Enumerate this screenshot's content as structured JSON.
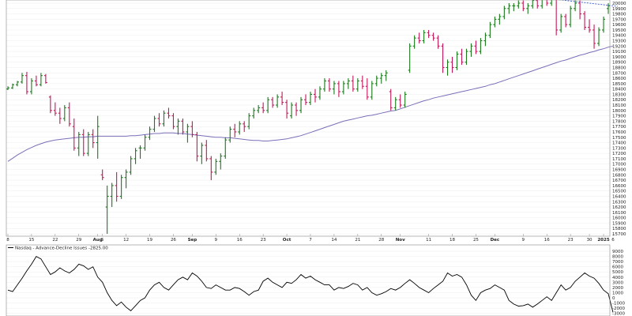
{
  "chart_data": [
    {
      "type": "ohlc",
      "title": "",
      "header_text": "",
      "ylim": [
        15700,
        20000
      ],
      "y_ticks": [
        20000,
        19900,
        19800,
        19700,
        19600,
        19500,
        19400,
        19300,
        19200,
        19100,
        19000,
        18900,
        18800,
        18700,
        18600,
        18500,
        18400,
        18300,
        18200,
        18100,
        18000,
        17900,
        17800,
        17700,
        17600,
        17500,
        17400,
        17300,
        17200,
        17100,
        17000,
        16900,
        16800,
        16700,
        16600,
        16500,
        16400,
        16300,
        16200,
        16100,
        16000,
        15900,
        15800,
        15700
      ],
      "x_ticks": [
        {
          "label": "8",
          "i": 0
        },
        {
          "label": "15",
          "i": 5
        },
        {
          "label": "22",
          "i": 10
        },
        {
          "label": "29",
          "i": 15
        },
        {
          "label": "Aug",
          "i": 19,
          "bold": true
        },
        {
          "label": "5",
          "i": 20
        },
        {
          "label": "12",
          "i": 25
        },
        {
          "label": "19",
          "i": 30
        },
        {
          "label": "26",
          "i": 35
        },
        {
          "label": "Sep",
          "i": 39,
          "bold": true
        },
        {
          "label": "9",
          "i": 44
        },
        {
          "label": "16",
          "i": 49
        },
        {
          "label": "23",
          "i": 54
        },
        {
          "label": "Oct",
          "i": 59,
          "bold": true
        },
        {
          "label": "7",
          "i": 64
        },
        {
          "label": "14",
          "i": 69
        },
        {
          "label": "21",
          "i": 74
        },
        {
          "label": "28",
          "i": 79
        },
        {
          "label": "Nov",
          "i": 83,
          "bold": true
        },
        {
          "label": "11",
          "i": 89
        },
        {
          "label": "18",
          "i": 94
        },
        {
          "label": "25",
          "i": 99
        },
        {
          "label": "Dec",
          "i": 103,
          "bold": true
        },
        {
          "label": "9",
          "i": 109
        },
        {
          "label": "16",
          "i": 114
        },
        {
          "label": "23",
          "i": 119
        },
        {
          "label": "30",
          "i": 123
        },
        {
          "label": "2025",
          "i": 126,
          "bold": true
        },
        {
          "label": "6",
          "i": 128
        }
      ],
      "bars": [
        [
          18400,
          18450,
          18380,
          18420
        ],
        [
          18420,
          18500,
          18400,
          18480
        ],
        [
          18480,
          18550,
          18450,
          18530
        ],
        [
          18530,
          18700,
          18500,
          18650
        ],
        [
          18650,
          18720,
          18300,
          18350
        ],
        [
          18350,
          18600,
          18300,
          18550
        ],
        [
          18550,
          18650,
          18450,
          18480
        ],
        [
          18480,
          18700,
          18450,
          18650
        ],
        [
          18650,
          18680,
          18500,
          18520
        ],
        [
          18250,
          18280,
          17950,
          18000
        ],
        [
          18000,
          18150,
          17900,
          17950
        ],
        [
          17950,
          18050,
          17750,
          17850
        ],
        [
          17850,
          18100,
          17800,
          18050
        ],
        [
          18050,
          18150,
          17700,
          17750
        ],
        [
          17700,
          17850,
          17250,
          17300
        ],
        [
          17300,
          17600,
          17150,
          17550
        ],
        [
          17550,
          17650,
          17150,
          17200
        ],
        [
          17200,
          17600,
          17150,
          17550
        ],
        [
          17550,
          17650,
          17300,
          17400
        ],
        [
          17400,
          17900,
          17100,
          17700
        ],
        [
          16800,
          16900,
          16700,
          16750
        ],
        [
          16200,
          16600,
          15700,
          16400
        ],
        [
          16400,
          16650,
          16200,
          16600
        ],
        [
          16600,
          16850,
          16300,
          16400
        ],
        [
          16400,
          16800,
          16350,
          16750
        ],
        [
          16750,
          16900,
          16550,
          16850
        ],
        [
          16850,
          17150,
          16800,
          17100
        ],
        [
          17100,
          17300,
          17000,
          17250
        ],
        [
          17300,
          17350,
          17100,
          17300
        ],
        [
          17300,
          17550,
          17250,
          17500
        ],
        [
          17500,
          17700,
          17450,
          17650
        ],
        [
          17650,
          17900,
          17600,
          17850
        ],
        [
          17850,
          17950,
          17700,
          17750
        ],
        [
          17750,
          18000,
          17700,
          17950
        ],
        [
          17950,
          18050,
          17850,
          17900
        ],
        [
          17900,
          17950,
          17650,
          17700
        ],
        [
          17700,
          17850,
          17550,
          17800
        ],
        [
          17800,
          17850,
          17550,
          17600
        ],
        [
          17600,
          17750,
          17400,
          17700
        ],
        [
          17700,
          17800,
          17500,
          17550
        ],
        [
          17550,
          17600,
          17050,
          17150
        ],
        [
          17150,
          17400,
          17000,
          17350
        ],
        [
          17350,
          17450,
          17050,
          17100
        ],
        [
          17100,
          17150,
          16700,
          16850
        ],
        [
          16850,
          17100,
          16800,
          17050
        ],
        [
          17050,
          17200,
          16900,
          17150
        ],
        [
          17150,
          17500,
          17100,
          17450
        ],
        [
          17450,
          17700,
          17400,
          17650
        ],
        [
          17650,
          17750,
          17500,
          17600
        ],
        [
          17600,
          17800,
          17550,
          17750
        ],
        [
          17750,
          17800,
          17600,
          17700
        ],
        [
          17700,
          17950,
          17650,
          17900
        ],
        [
          17900,
          18050,
          17850,
          18000
        ],
        [
          18000,
          18100,
          17950,
          18050
        ],
        [
          18050,
          18150,
          17950,
          18000
        ],
        [
          18000,
          18250,
          17950,
          18200
        ],
        [
          18200,
          18250,
          18050,
          18100
        ],
        [
          18100,
          18300,
          18050,
          18250
        ],
        [
          18250,
          18350,
          18100,
          18150
        ],
        [
          18150,
          18200,
          17850,
          17950
        ],
        [
          17900,
          18150,
          17850,
          18100
        ],
        [
          18100,
          18150,
          17900,
          18000
        ],
        [
          18000,
          18250,
          17950,
          18200
        ],
        [
          18200,
          18300,
          18100,
          18150
        ],
        [
          18150,
          18350,
          18100,
          18300
        ],
        [
          18300,
          18400,
          18150,
          18250
        ],
        [
          18250,
          18450,
          18200,
          18400
        ],
        [
          18400,
          18600,
          18350,
          18550
        ],
        [
          18550,
          18600,
          18350,
          18400
        ],
        [
          18400,
          18550,
          18300,
          18500
        ],
        [
          18500,
          18550,
          18250,
          18350
        ],
        [
          18350,
          18550,
          18300,
          18500
        ],
        [
          18500,
          18600,
          18400,
          18550
        ],
        [
          18550,
          18650,
          18350,
          18400
        ],
        [
          18400,
          18600,
          18350,
          18550
        ],
        [
          18550,
          18650,
          18400,
          18450
        ],
        [
          18450,
          18600,
          18200,
          18250
        ],
        [
          18250,
          18550,
          18200,
          18500
        ],
        [
          18500,
          18650,
          18450,
          18600
        ],
        [
          18600,
          18700,
          18500,
          18650
        ],
        [
          18650,
          18750,
          18550,
          18700
        ],
        [
          18350,
          18400,
          18000,
          18050
        ],
        [
          18050,
          18250,
          18000,
          18200
        ],
        [
          18200,
          18300,
          18050,
          18100
        ],
        [
          18100,
          18350,
          18050,
          18300
        ],
        [
          18750,
          19250,
          18700,
          19200
        ],
        [
          19200,
          19400,
          19150,
          19350
        ],
        [
          19350,
          19450,
          19250,
          19300
        ],
        [
          19300,
          19500,
          19250,
          19450
        ],
        [
          19450,
          19500,
          19350,
          19400
        ],
        [
          19400,
          19450,
          19300,
          19350
        ],
        [
          19350,
          19400,
          19150,
          19200
        ],
        [
          19200,
          19250,
          18700,
          18800
        ],
        [
          18800,
          18950,
          18650,
          18900
        ],
        [
          18900,
          19000,
          18700,
          18800
        ],
        [
          18800,
          19100,
          18750,
          19050
        ],
        [
          19050,
          19150,
          18850,
          18900
        ],
        [
          18900,
          19150,
          18850,
          19100
        ],
        [
          19100,
          19250,
          19000,
          19200
        ],
        [
          19200,
          19300,
          19050,
          19100
        ],
        [
          19100,
          19350,
          19050,
          19300
        ],
        [
          19300,
          19450,
          19200,
          19400
        ],
        [
          19400,
          19650,
          19350,
          19600
        ],
        [
          19600,
          19750,
          19550,
          19700
        ],
        [
          19700,
          19800,
          19600,
          19750
        ],
        [
          19750,
          19950,
          19700,
          19900
        ],
        [
          19900,
          20000,
          19800,
          19950
        ],
        [
          19950,
          20000,
          19850,
          19950
        ],
        [
          19950,
          20050,
          19900,
          20000
        ],
        [
          20000,
          20050,
          19850,
          19900
        ],
        [
          19900,
          20000,
          19800,
          19950
        ],
        [
          19950,
          20100,
          19900,
          20050
        ],
        [
          20050,
          20100,
          19900,
          19950
        ],
        [
          19950,
          20150,
          19900,
          20100
        ],
        [
          20100,
          20150,
          19950,
          20000
        ],
        [
          20000,
          20150,
          19950,
          20100
        ],
        [
          20100,
          20150,
          19400,
          19500
        ],
        [
          19500,
          19800,
          19450,
          19750
        ],
        [
          19750,
          19800,
          19550,
          19600
        ],
        [
          19600,
          19950,
          19550,
          19900
        ],
        [
          19900,
          20050,
          19850,
          20000
        ],
        [
          20000,
          20050,
          19700,
          19800
        ],
        [
          19800,
          19850,
          19500,
          19550
        ],
        [
          19550,
          19700,
          19450,
          19500
        ],
        [
          19500,
          19600,
          19150,
          19250
        ],
        [
          19250,
          19550,
          19200,
          19500
        ],
        [
          19500,
          19750,
          19450,
          19700
        ],
        [
          19900,
          20000,
          19800,
          19950
        ]
      ],
      "ma": [
        17050,
        17110,
        17170,
        17220,
        17270,
        17310,
        17350,
        17380,
        17410,
        17430,
        17450,
        17460,
        17470,
        17480,
        17490,
        17500,
        17500,
        17510,
        17510,
        17520,
        17520,
        17520,
        17520,
        17520,
        17520,
        17520,
        17530,
        17530,
        17540,
        17550,
        17560,
        17570,
        17570,
        17580,
        17580,
        17580,
        17570,
        17570,
        17560,
        17550,
        17540,
        17530,
        17520,
        17510,
        17500,
        17500,
        17490,
        17490,
        17480,
        17470,
        17460,
        17450,
        17440,
        17440,
        17430,
        17430,
        17440,
        17450,
        17460,
        17470,
        17490,
        17510,
        17530,
        17560,
        17590,
        17620,
        17650,
        17680,
        17710,
        17740,
        17770,
        17800,
        17820,
        17840,
        17860,
        17880,
        17900,
        17910,
        17930,
        17950,
        17970,
        17990,
        18000,
        18030,
        18060,
        18090,
        18120,
        18150,
        18180,
        18200,
        18230,
        18250,
        18270,
        18290,
        18310,
        18330,
        18350,
        18370,
        18390,
        18410,
        18430,
        18450,
        18480,
        18500,
        18530,
        18560,
        18590,
        18620,
        18650,
        18680,
        18710,
        18740,
        18770,
        18800,
        18830,
        18860,
        18890,
        18920,
        18940,
        18970,
        19000,
        19030,
        19050,
        19080,
        19100,
        19130,
        19150,
        19180,
        19200
      ],
      "trendline": {
        "from": {
          "i": 112,
          "y": 20110
        },
        "to": {
          "i": 129,
          "y": 19940
        }
      }
    },
    {
      "type": "line",
      "series_name": "Nasdaq - Advance-Decline Issues -2825.00",
      "ylim": [
        -3200,
        9000
      ],
      "y_ticks": [
        9000,
        8000,
        7000,
        6000,
        5000,
        4000,
        3000,
        2000,
        1000,
        0,
        -1000,
        -2000,
        -3000
      ],
      "values": [
        1500,
        1200,
        2500,
        3800,
        5200,
        6500,
        8000,
        7500,
        6000,
        4500,
        5000,
        5800,
        5200,
        4800,
        5500,
        6500,
        6200,
        5500,
        6000,
        4000,
        3000,
        1000,
        -500,
        -1500,
        -800,
        -1800,
        -2500,
        -1500,
        -500,
        0,
        1500,
        2500,
        3000,
        2000,
        1500,
        2500,
        3500,
        4000,
        3500,
        4800,
        4200,
        3200,
        2000,
        1800,
        2500,
        2000,
        1500,
        1500,
        2000,
        1800,
        1200,
        500,
        1200,
        1500,
        3200,
        3800,
        3000,
        2500,
        2000,
        3000,
        2800,
        3500,
        4500,
        3800,
        4200,
        3500,
        3000,
        2500,
        2500,
        1500,
        2000,
        1800,
        2200,
        2800,
        2500,
        1500,
        2000,
        1000,
        500,
        800,
        1200,
        1800,
        1500,
        2000,
        2800,
        3500,
        2800,
        2000,
        1500,
        1000,
        1800,
        2500,
        3200,
        4800,
        4200,
        4500,
        4000,
        2500,
        500,
        -500,
        1000,
        1500,
        1800,
        2500,
        2000,
        1500,
        -500,
        -1200,
        -1600,
        -1500,
        -1200,
        -1800,
        -1200,
        -500,
        200,
        -500,
        1000,
        2500,
        1500,
        2000,
        3200,
        4000,
        4800,
        4200,
        3800,
        2800,
        1500,
        800,
        -2825
      ]
    }
  ]
}
